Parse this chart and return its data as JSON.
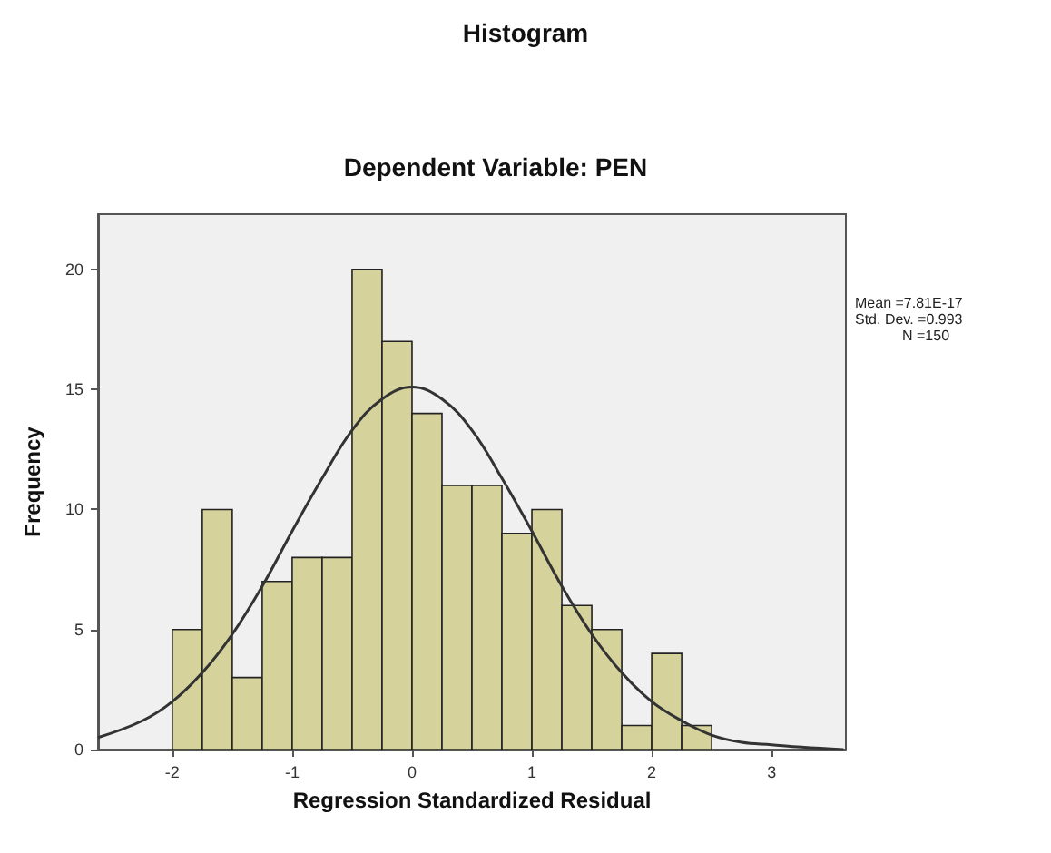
{
  "chart_data": {
    "type": "histogram",
    "title": "Histogram",
    "subtitle": "Dependent Variable: PEN",
    "xlabel": "Regression Standardized Residual",
    "ylabel": "Frequency",
    "bins": [
      -2,
      -1.75,
      -1.5,
      -1.25,
      -1,
      -0.75,
      -0.5,
      -0.25,
      0,
      0.25,
      0.5,
      0.75,
      1,
      1.25,
      1.5,
      1.75,
      2,
      2.25,
      2.5
    ],
    "values": [
      5,
      10,
      3,
      7,
      8,
      8,
      20,
      17,
      14,
      11,
      11,
      9,
      10,
      6,
      5,
      1,
      4,
      1
    ],
    "color": "#d6d29c",
    "series": [
      {
        "type": "line",
        "color": "#333333",
        "x": [
          -2.62,
          -2.25,
          -2,
          -1.75,
          -1.5,
          -1.25,
          -1,
          -0.75,
          -0.5,
          -0.25,
          0,
          0.25,
          0.5,
          0.75,
          1,
          1.25,
          1.5,
          1.75,
          2,
          2.25,
          2.5,
          2.75,
          3,
          3.25,
          3.6
        ],
        "values": [
          0.5,
          1.2,
          2,
          3.2,
          4.8,
          6.8,
          9.1,
          11.3,
          13.3,
          14.6,
          15.1,
          14.6,
          13.3,
          11.3,
          9.1,
          6.8,
          4.8,
          3.2,
          2,
          1.2,
          0.6,
          0.3,
          0.2,
          0.1,
          0
        ]
      }
    ],
    "xlim": [
      -2.62,
      3.62
    ],
    "ylim": [
      0,
      22.3
    ],
    "xticks": [
      -2,
      -1,
      0,
      1,
      2,
      3
    ],
    "yticks": [
      0,
      5,
      10,
      15,
      20
    ],
    "grid": false,
    "legend": false,
    "annotations": [
      "Mean =7.81E-17",
      "Std. Dev. =0.993",
      "N =150"
    ]
  }
}
